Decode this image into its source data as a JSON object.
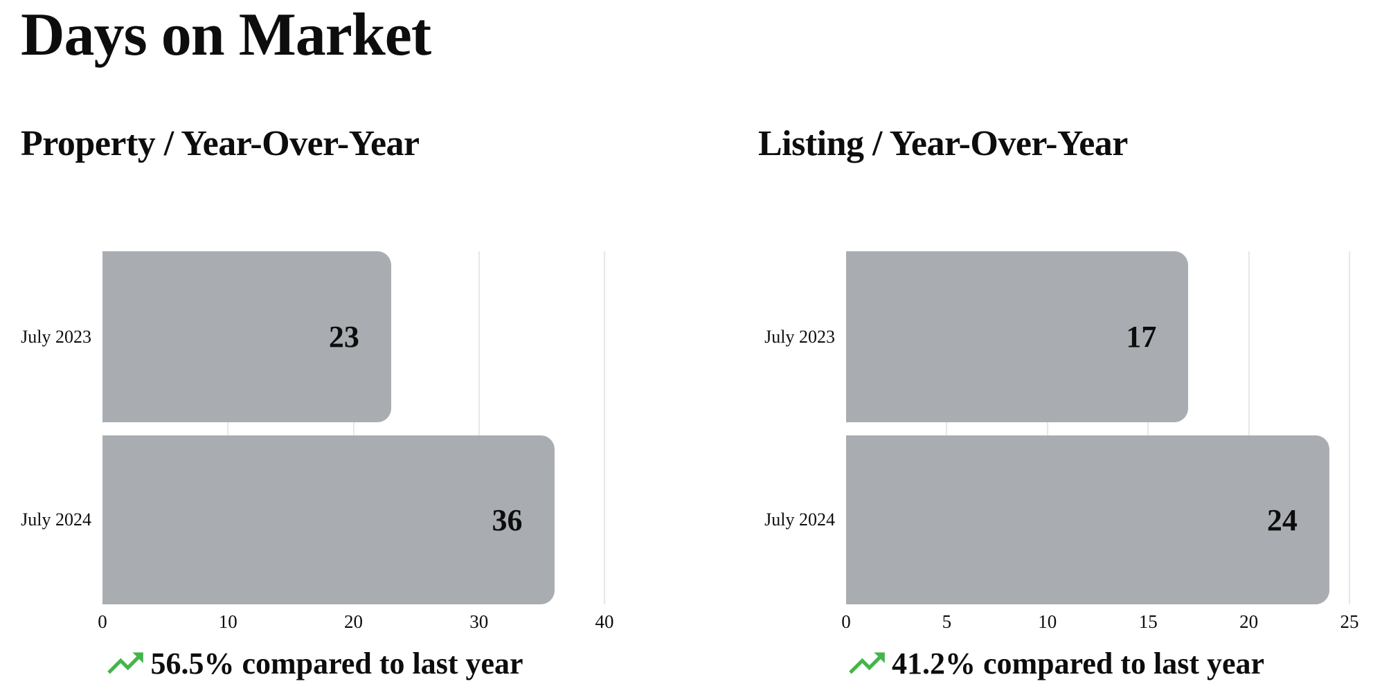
{
  "header": {
    "title": "Days on Market"
  },
  "colors": {
    "bar": "#a9adb1",
    "grid": "#e7e7e7",
    "text": "#0d0d0d",
    "green": "#45b54b",
    "background": "#ffffff"
  },
  "chart_data": [
    {
      "type": "bar",
      "orientation": "horizontal",
      "title": "Property / Year-Over-Year",
      "categories": [
        "July 2023",
        "July 2024"
      ],
      "values": [
        23,
        36
      ],
      "xlim": [
        0,
        40
      ],
      "xticks": [
        0,
        10,
        20,
        30,
        40
      ],
      "grid": "vertical-light",
      "legend": "none",
      "bar_corner": "rounded-right",
      "footer": "56.5% compared to last year",
      "trend": "up"
    },
    {
      "type": "bar",
      "orientation": "horizontal",
      "title": "Listing / Year-Over-Year",
      "categories": [
        "July 2023",
        "July 2024"
      ],
      "values": [
        17,
        24
      ],
      "xlim": [
        0,
        25
      ],
      "xticks": [
        0,
        5,
        10,
        15,
        20,
        25
      ],
      "grid": "vertical-light",
      "legend": "none",
      "bar_corner": "rounded-right",
      "footer": "41.2% compared to last year",
      "trend": "up"
    }
  ]
}
